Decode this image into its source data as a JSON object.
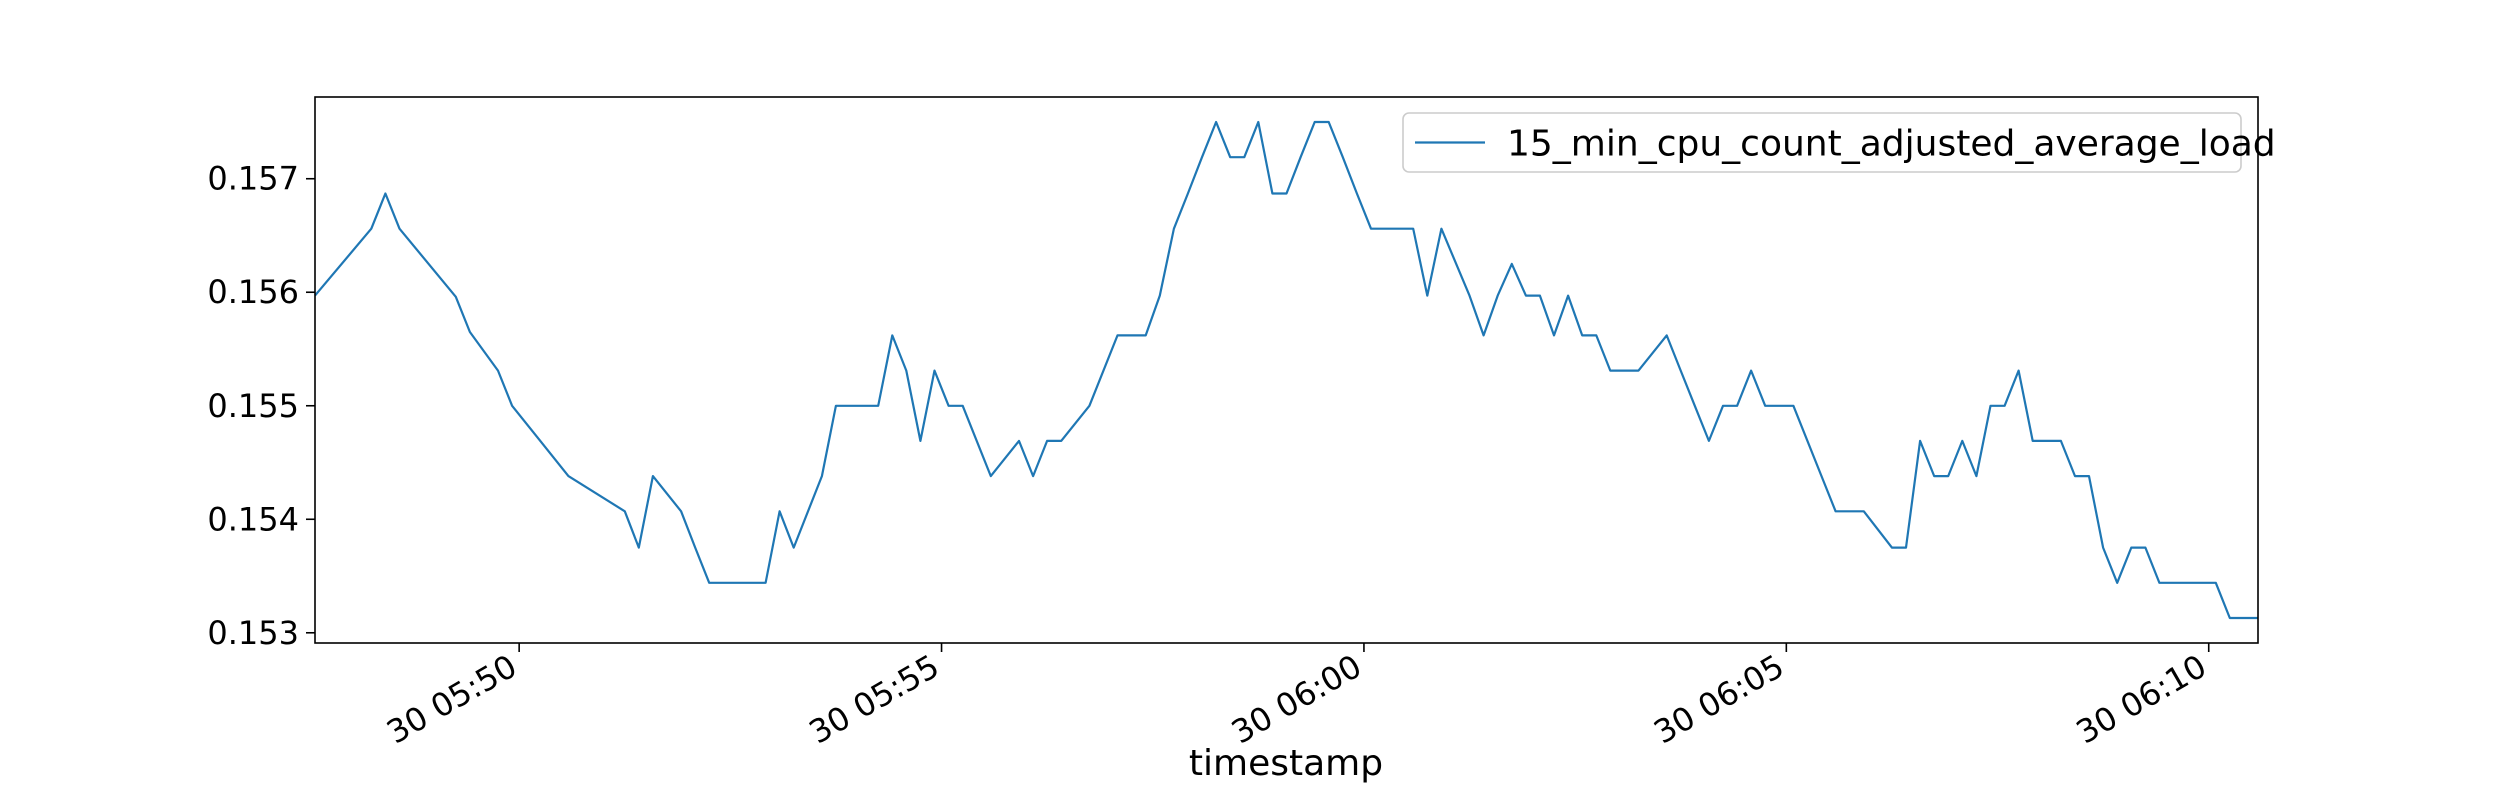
{
  "chart_data": {
    "type": "line",
    "title": "",
    "xlabel": "timestamp",
    "ylabel": "",
    "grid": false,
    "legend_position": "top-right",
    "xlim": [
      "05:47:35",
      "06:10:35"
    ],
    "ylim": [
      0.15291,
      0.15772
    ],
    "x_ticks": [
      "30 05:50",
      "30 05:55",
      "30 06:00",
      "30 06:05",
      "30 06:10"
    ],
    "y_ticks": [
      "0.153",
      "0.154",
      "0.155",
      "0.156",
      "0.157"
    ],
    "series": [
      {
        "name": "15_min_cpu_count_adjusted_average_load",
        "color": "#1f77b4",
        "x": [
          "05:47:35",
          "05:48:15",
          "05:48:25",
          "05:48:35",
          "05:49:15",
          "05:49:25",
          "05:49:45",
          "05:49:55",
          "05:50:15",
          "05:50:35",
          "05:51:15",
          "05:51:25",
          "05:51:35",
          "05:51:55",
          "05:52:05",
          "05:52:15",
          "05:52:25",
          "05:52:55",
          "05:53:05",
          "05:53:15",
          "05:53:35",
          "05:53:45",
          "05:53:55",
          "05:54:05",
          "05:54:15",
          "05:54:25",
          "05:54:35",
          "05:54:45",
          "05:54:55",
          "05:55:05",
          "05:55:15",
          "05:55:35",
          "05:55:55",
          "05:56:05",
          "05:56:15",
          "05:56:25",
          "05:56:45",
          "05:57:05",
          "05:57:15",
          "05:57:25",
          "05:57:35",
          "05:57:45",
          "05:57:55",
          "05:58:05",
          "05:58:15",
          "05:58:25",
          "05:58:35",
          "05:58:45",
          "05:58:55",
          "05:59:05",
          "05:59:15",
          "05:59:25",
          "05:59:35",
          "05:59:45",
          "05:59:55",
          "06:00:05",
          "06:00:35",
          "06:00:45",
          "06:00:55",
          "06:01:15",
          "06:01:25",
          "06:01:35",
          "06:01:45",
          "06:01:55",
          "06:02:05",
          "06:02:15",
          "06:02:25",
          "06:02:35",
          "06:02:45",
          "06:02:55",
          "06:03:15",
          "06:03:35",
          "06:03:45",
          "06:03:55",
          "06:04:05",
          "06:04:15",
          "06:04:25",
          "06:04:35",
          "06:04:45",
          "06:05:05",
          "06:05:25",
          "06:05:35",
          "06:05:55",
          "06:06:15",
          "06:06:25",
          "06:06:35",
          "06:06:45",
          "06:06:55",
          "06:07:05",
          "06:07:15",
          "06:07:25",
          "06:07:35",
          "06:07:45",
          "06:07:55",
          "06:08:15",
          "06:08:25",
          "06:08:35",
          "06:08:45",
          "06:08:55",
          "06:09:05",
          "06:09:15",
          "06:09:25",
          "06:09:35",
          "06:09:45",
          "06:10:05",
          "06:10:15",
          "06:10:35"
        ],
        "values": [
          0.15597,
          0.15656,
          0.15687,
          0.15656,
          0.15596,
          0.15565,
          0.15531,
          0.155,
          0.15469,
          0.15438,
          0.15407,
          0.15375,
          0.15438,
          0.15407,
          0.15375,
          0.15344,
          0.15344,
          0.15344,
          0.15407,
          0.15375,
          0.15438,
          0.155,
          0.155,
          0.155,
          0.155,
          0.15562,
          0.15531,
          0.15469,
          0.15531,
          0.155,
          0.155,
          0.15438,
          0.15469,
          0.15438,
          0.15469,
          0.15469,
          0.155,
          0.15562,
          0.15562,
          0.15562,
          0.15597,
          0.15656,
          0.15687,
          0.15719,
          0.1575,
          0.15719,
          0.15719,
          0.1575,
          0.15687,
          0.15687,
          0.15719,
          0.1575,
          0.1575,
          0.15719,
          0.15687,
          0.15656,
          0.15656,
          0.15597,
          0.15656,
          0.15597,
          0.15562,
          0.15597,
          0.15625,
          0.15597,
          0.15597,
          0.15562,
          0.15597,
          0.15562,
          0.15562,
          0.15531,
          0.15531,
          0.15562,
          0.15531,
          0.155,
          0.15469,
          0.155,
          0.155,
          0.15531,
          0.155,
          0.155,
          0.15438,
          0.15407,
          0.15407,
          0.15375,
          0.15375,
          0.15469,
          0.15438,
          0.15438,
          0.15469,
          0.15438,
          0.155,
          0.155,
          0.15531,
          0.15469,
          0.15469,
          0.15438,
          0.15438,
          0.15375,
          0.15344,
          0.15375,
          0.15375,
          0.15344,
          0.15344,
          0.15344,
          0.15344,
          0.15313,
          0.15313
        ]
      }
    ]
  }
}
